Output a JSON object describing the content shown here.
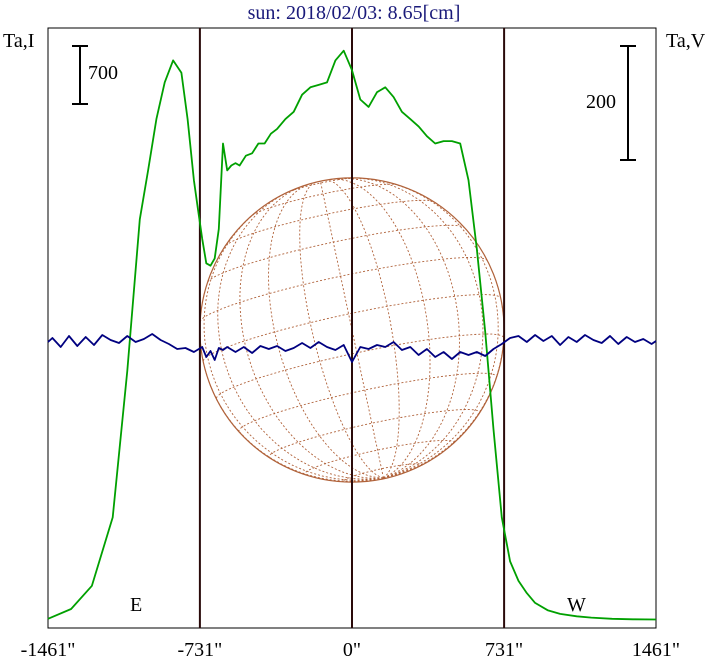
{
  "chart_data": {
    "type": "line",
    "title": "sun: 2018/02/03: 8.65[cm]",
    "left_axis_label": "Ta,I",
    "right_axis_label": "Ta,V",
    "left_scale_bar": "700",
    "right_scale_bar": "200",
    "limb_labels": {
      "east": "E",
      "west": "W"
    },
    "x_tick_labels": [
      "-1461\"",
      "-731\"",
      "0\"",
      "731\"",
      "1461\""
    ],
    "x_ticks": [
      -1461,
      -731,
      0,
      731,
      1461
    ],
    "xlim": [
      -1461,
      1461
    ],
    "vertical_lines_arcsec": [
      -731,
      0,
      731
    ],
    "disk_radius_arcsec": 731,
    "series": [
      {
        "name": "Ta,I",
        "color": "#00a000",
        "axis": "left",
        "x": [
          -1461,
          -1350,
          -1250,
          -1150,
          -1080,
          -1020,
          -980,
          -940,
          -900,
          -860,
          -820,
          -790,
          -760,
          -740,
          -720,
          -700,
          -680,
          -660,
          -640,
          -620,
          -600,
          -580,
          -560,
          -540,
          -510,
          -480,
          -450,
          -420,
          -390,
          -360,
          -320,
          -280,
          -240,
          -200,
          -160,
          -120,
          -80,
          -40,
          0,
          40,
          80,
          120,
          160,
          200,
          240,
          280,
          320,
          360,
          400,
          440,
          480,
          520,
          560,
          600,
          640,
          680,
          720,
          760,
          800,
          840,
          880,
          940,
          1000,
          1080,
          1150,
          1250,
          1350,
          1461
        ],
        "y": [
          5,
          45,
          140,
          420,
          1020,
          1640,
          1840,
          2050,
          2200,
          2290,
          2240,
          2050,
          1800,
          1680,
          1560,
          1460,
          1450,
          1480,
          1600,
          1950,
          1840,
          1860,
          1870,
          1860,
          1900,
          1910,
          1950,
          1950,
          1990,
          2010,
          2050,
          2080,
          2150,
          2180,
          2190,
          2200,
          2290,
          2330,
          2250,
          2130,
          2100,
          2160,
          2180,
          2140,
          2080,
          2050,
          2020,
          1980,
          1950,
          1960,
          1960,
          1950,
          1800,
          1520,
          1180,
          780,
          420,
          240,
          160,
          110,
          70,
          40,
          25,
          15,
          10,
          5,
          3,
          2
        ]
      },
      {
        "name": "Ta,V",
        "color": "#000080",
        "axis": "right",
        "x": [
          -1461,
          -1440,
          -1400,
          -1360,
          -1320,
          -1280,
          -1240,
          -1200,
          -1160,
          -1120,
          -1080,
          -1040,
          -1000,
          -960,
          -920,
          -880,
          -840,
          -800,
          -760,
          -720,
          -700,
          -680,
          -660,
          -640,
          -620,
          -600,
          -560,
          -520,
          -480,
          -440,
          -400,
          -360,
          -320,
          -280,
          -240,
          -200,
          -160,
          -120,
          -80,
          -40,
          0,
          40,
          80,
          120,
          160,
          200,
          240,
          280,
          320,
          360,
          400,
          440,
          480,
          520,
          560,
          600,
          640,
          680,
          720,
          760,
          800,
          840,
          880,
          920,
          960,
          1000,
          1040,
          1080,
          1120,
          1160,
          1200,
          1240,
          1280,
          1320,
          1360,
          1400,
          1440,
          1461
        ],
        "y": [
          2,
          6,
          -3,
          8,
          -2,
          7,
          -1,
          9,
          4,
          1,
          8,
          2,
          5,
          10,
          4,
          0,
          -5,
          -4,
          -8,
          -3,
          -13,
          -7,
          -16,
          -4,
          -6,
          -3,
          -8,
          -3,
          -9,
          -2,
          -5,
          -2,
          -7,
          -4,
          1,
          -4,
          2,
          -3,
          -6,
          -1,
          -18,
          -3,
          -5,
          -1,
          -3,
          2,
          -6,
          -3,
          -11,
          -5,
          -13,
          -8,
          -15,
          -8,
          -11,
          -8,
          -12,
          -5,
          0,
          6,
          8,
          2,
          9,
          3,
          8,
          -1,
          7,
          2,
          9,
          4,
          1,
          8,
          0,
          7,
          2,
          5,
          0,
          3
        ]
      }
    ]
  }
}
